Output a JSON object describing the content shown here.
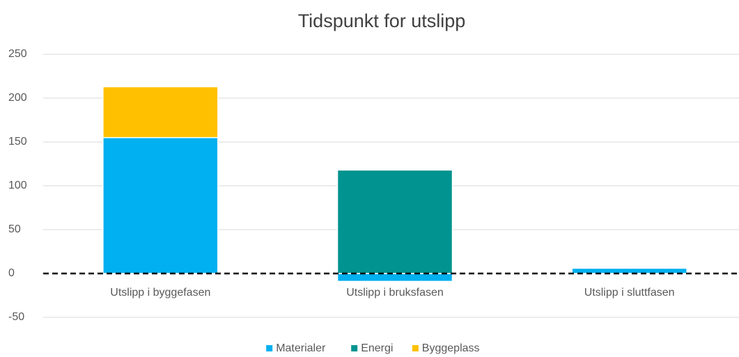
{
  "chart_data": {
    "type": "stacked_bar",
    "title": "Tidspunkt for utslipp",
    "categories": [
      "Utslipp i byggefasen",
      "Utslipp i bruksfasen",
      "Utslipp i sluttfasen"
    ],
    "series": [
      {
        "name": "Materialer",
        "color": "#00b0f0",
        "values": [
          155,
          -9,
          6
        ]
      },
      {
        "name": "Energi",
        "color": "#00938f",
        "values": [
          0,
          118,
          0
        ]
      },
      {
        "name": "Byggeplass",
        "color": "#ffc000",
        "values": [
          58,
          0,
          0
        ]
      }
    ],
    "ylim": [
      -50,
      250
    ],
    "yticks": [
      -50,
      0,
      50,
      100,
      150,
      200,
      250
    ],
    "grid": true,
    "legend": "bottom"
  }
}
